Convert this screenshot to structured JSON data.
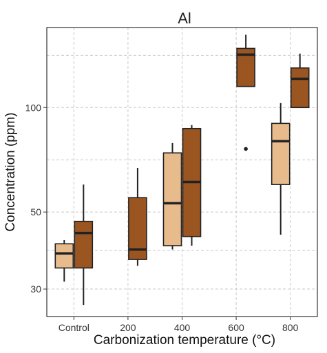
{
  "chart_data": {
    "type": "box",
    "title": "Al",
    "xlabel": "Carbonization temperature (°C)",
    "ylabel": "Concentration (ppm)",
    "y_scale": "log",
    "ylim": [
      25,
      170
    ],
    "y_ticks": [
      30,
      50,
      100
    ],
    "categories": [
      "Control",
      "200",
      "400",
      "600",
      "800"
    ],
    "grid": true,
    "legend": "none",
    "colors": {
      "light": "#e8bb8d",
      "dark": "#9b5521"
    },
    "series": [
      {
        "color_key": "light",
        "boxes": [
          {
            "category": "Control",
            "min": 31.5,
            "q1": 34.5,
            "median": 38,
            "q3": 40.5,
            "max": 41.5
          },
          {
            "category": "400",
            "min": 39,
            "q1": 40,
            "median": 53,
            "q3": 74,
            "max": 79
          },
          {
            "category": "800",
            "min": 43,
            "q1": 60,
            "median": 80,
            "q3": 90,
            "max": 103
          }
        ]
      },
      {
        "color_key": "dark",
        "boxes": [
          {
            "category": "Control",
            "min": 27,
            "q1": 34.5,
            "median": 43.5,
            "q3": 47,
            "max": 60
          },
          {
            "category": "200",
            "min": 35,
            "q1": 36.5,
            "median": 39,
            "q3": 55,
            "max": 67
          },
          {
            "category": "400",
            "min": 40,
            "q1": 42.5,
            "median": 61,
            "q3": 87,
            "max": 89
          },
          {
            "category": "600",
            "min": 115,
            "q1": 115,
            "median": 142,
            "q3": 148,
            "max": 162,
            "outliers": [
              76
            ]
          },
          {
            "category": "800",
            "min": 100,
            "q1": 100,
            "median": 121,
            "q3": 130,
            "max": 143
          }
        ]
      }
    ]
  }
}
